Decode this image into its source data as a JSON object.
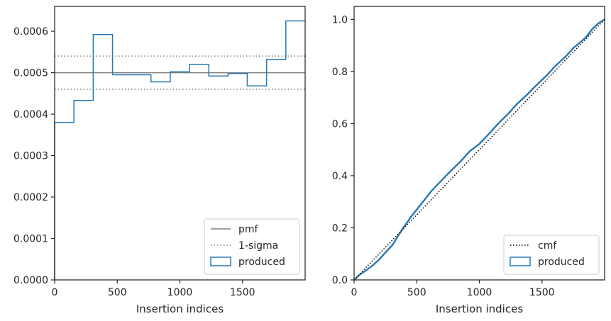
{
  "colors": {
    "produced": "#2878b5",
    "pmf": "#808080",
    "sigma": "#808080",
    "cmf": "#000000",
    "axes": "#262626"
  },
  "chart_data": [
    {
      "type": "histogram",
      "xlabel": "Insertion indices",
      "ylabel": "",
      "xlim": [
        0,
        2000
      ],
      "ylim": [
        0,
        0.00066
      ],
      "xticks": [
        0,
        500,
        1000,
        1500
      ],
      "yticks": [
        "0.0000",
        "0.0001",
        "0.0002",
        "0.0003",
        "0.0004",
        "0.0005",
        "0.0006"
      ],
      "bin_edges": [
        0,
        154,
        308,
        462,
        615,
        769,
        923,
        1077,
        1231,
        1385,
        1538,
        1692,
        1846,
        2000
      ],
      "series": [
        {
          "name": "produced",
          "style": "step",
          "values": [
            0.00038,
            0.000433,
            0.000592,
            0.000495,
            0.000495,
            0.000478,
            0.000502,
            0.00052,
            0.000492,
            0.000498,
            0.000468,
            0.000532,
            0.000625
          ]
        },
        {
          "name": "pmf",
          "style": "hline",
          "y": 0.0005
        },
        {
          "name": "1-sigma",
          "style": "hline-dotted",
          "y": [
            0.00046,
            0.00054
          ]
        }
      ],
      "legend": {
        "position": "bottom-right",
        "entries": [
          "pmf",
          "1-sigma",
          "produced"
        ]
      },
      "grid": false
    },
    {
      "type": "line",
      "xlabel": "Insertion indices",
      "ylabel": "",
      "xlim": [
        0,
        2000
      ],
      "ylim": [
        0,
        1.05
      ],
      "xticks": [
        0,
        500,
        1000,
        1500
      ],
      "yticks": [
        "0.0",
        "0.2",
        "0.4",
        "0.6",
        "0.8",
        "1.0"
      ],
      "series": [
        {
          "name": "cmf",
          "style": "dotted",
          "x": [
            0,
            2000
          ],
          "y": [
            0,
            1.0
          ]
        },
        {
          "name": "produced",
          "style": "step",
          "x": [
            0,
            50,
            100,
            154,
            200,
            250,
            308,
            350,
            400,
            462,
            500,
            550,
            615,
            700,
            769,
            850,
            923,
            1000,
            1077,
            1150,
            1231,
            1300,
            1385,
            1450,
            1538,
            1600,
            1692,
            1750,
            1846,
            1900,
            1950,
            2000
          ],
          "y": [
            0,
            0.022,
            0.038,
            0.058,
            0.078,
            0.105,
            0.135,
            0.168,
            0.205,
            0.247,
            0.27,
            0.3,
            0.34,
            0.383,
            0.417,
            0.455,
            0.494,
            0.522,
            0.561,
            0.6,
            0.638,
            0.675,
            0.713,
            0.745,
            0.785,
            0.818,
            0.859,
            0.89,
            0.929,
            0.962,
            0.985,
            1.0
          ]
        }
      ],
      "legend": {
        "position": "bottom-right",
        "entries": [
          "cmf",
          "produced"
        ]
      },
      "grid": false
    }
  ]
}
